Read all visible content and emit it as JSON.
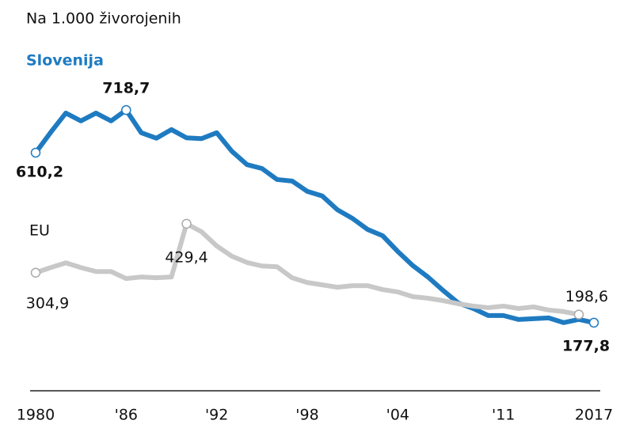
{
  "chart_data": {
    "type": "line",
    "title": "Na 1.000 živorojenih",
    "x": [
      1980,
      1981,
      1982,
      1983,
      1984,
      1985,
      1986,
      1987,
      1988,
      1989,
      1990,
      1991,
      1992,
      1993,
      1994,
      1995,
      1996,
      1997,
      1998,
      1999,
      2000,
      2001,
      2002,
      2003,
      2004,
      2005,
      2006,
      2007,
      2008,
      2009,
      2010,
      2011,
      2012,
      2013,
      2014,
      2015,
      2016,
      2017
    ],
    "series": [
      {
        "name": "Slovenija",
        "color": "#1f7bc1",
        "values": [
          610.2,
          662,
          711,
          691,
          711,
          691,
          718.7,
          661,
          647,
          669,
          648,
          646,
          661,
          614,
          580,
          570,
          542,
          538,
          512,
          500,
          465,
          443,
          415,
          399,
          359,
          323,
          294,
          260,
          228,
          214,
          196,
          196,
          186,
          188,
          190,
          178,
          186,
          177.8
        ],
        "value_labels": [
          "610,2",
          null,
          null,
          null,
          null,
          null,
          "718,7",
          null,
          null,
          null,
          null,
          null,
          null,
          null,
          null,
          null,
          null,
          null,
          null,
          null,
          null,
          null,
          null,
          null,
          null,
          null,
          null,
          null,
          null,
          null,
          null,
          null,
          null,
          null,
          null,
          null,
          null,
          "177,8"
        ]
      },
      {
        "name": "EU",
        "color": "#c8c8c8",
        "values": [
          304.9,
          318,
          330,
          318,
          308,
          308,
          290,
          294,
          292,
          294,
          429.4,
          409,
          373,
          347,
          331,
          322,
          320,
          292,
          280,
          274,
          268,
          272,
          272,
          262,
          256,
          244,
          240,
          234,
          226,
          220,
          216,
          220,
          214,
          218,
          210,
          206,
          198.6,
          null
        ],
        "value_labels": [
          "304,9",
          null,
          null,
          null,
          null,
          null,
          null,
          null,
          null,
          null,
          "429,4",
          null,
          null,
          null,
          null,
          null,
          null,
          null,
          null,
          null,
          null,
          null,
          null,
          null,
          null,
          null,
          null,
          null,
          null,
          null,
          null,
          null,
          null,
          null,
          null,
          null,
          "198,6",
          null
        ]
      }
    ],
    "xlim": [
      1980,
      2017
    ],
    "xticks": [
      1980,
      {
        "value": 1986,
        "label": "'86"
      },
      {
        "value": 1992,
        "label": "'92"
      },
      {
        "value": 1998,
        "label": "'98"
      },
      {
        "value": 2004,
        "label": "'04"
      },
      {
        "value": 2011,
        "label": "'11"
      },
      2017
    ],
    "ylim": [
      100,
      800
    ]
  }
}
